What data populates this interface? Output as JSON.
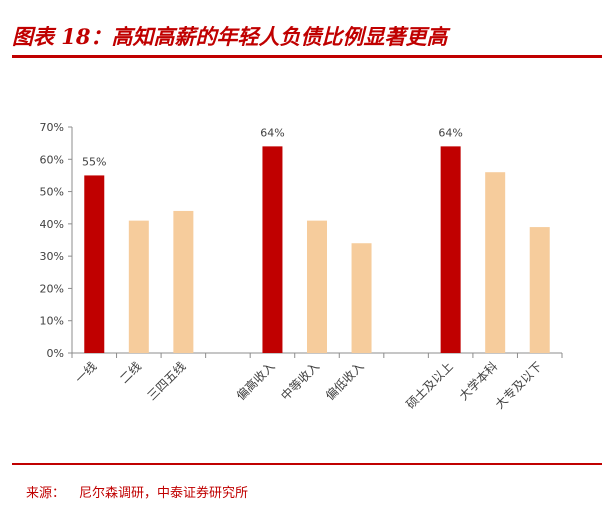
{
  "header": {
    "title": "图表 18：高知高薪的年轻人负债比例显著更高"
  },
  "footer": {
    "source_label": "来源：",
    "source_text": "尼尔森调研，中泰证券研究所"
  },
  "colors": {
    "highlight": "#c00000",
    "normal": "#f6cc9c",
    "rule": "#c00000"
  },
  "chart_data": {
    "type": "bar",
    "title": "",
    "xlabel": "",
    "ylabel": "",
    "ylim": [
      0,
      70
    ],
    "yticks": [
      0,
      10,
      20,
      30,
      40,
      50,
      60,
      70
    ],
    "ytick_labels": [
      "0%",
      "10%",
      "20%",
      "30%",
      "40%",
      "50%",
      "60%",
      "70%"
    ],
    "grid": false,
    "legend": "none",
    "groups": [
      {
        "categories": [
          "一线",
          "二线",
          "三四五线"
        ],
        "values": [
          55,
          41,
          44
        ],
        "highlight": [
          true,
          false,
          false
        ],
        "labels": [
          "55%",
          "",
          ""
        ]
      },
      {
        "categories": [
          "偏高收入",
          "中等收入",
          "偏低收入"
        ],
        "values": [
          64,
          41,
          34
        ],
        "highlight": [
          true,
          false,
          false
        ],
        "labels": [
          "64%",
          "",
          ""
        ]
      },
      {
        "categories": [
          "硕士及以上",
          "大学本科",
          "大专及以下"
        ],
        "values": [
          64,
          56,
          39
        ],
        "highlight": [
          true,
          false,
          false
        ],
        "labels": [
          "64%",
          "",
          ""
        ]
      }
    ]
  }
}
